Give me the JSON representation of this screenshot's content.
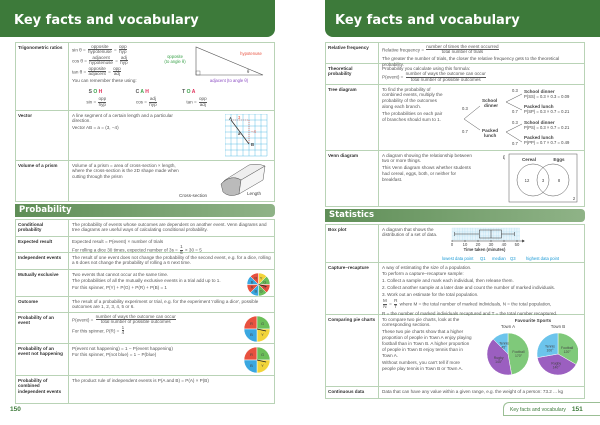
{
  "left": {
    "title": "Key facts and vocabulary",
    "page": "150",
    "rows1": [
      {
        "key": "trig",
        "label": "Trigonometric ratios",
        "lines": [
          [
            "sin θ = ",
            {
              "n": "opposite",
              "d": "hypotenuse"
            },
            " = ",
            {
              "n": "opp",
              "d": "hyp"
            }
          ],
          [
            "cos θ = ",
            {
              "n": "adjacent",
              "d": "hypotenuse"
            },
            " = ",
            {
              "n": "adj",
              "d": "hyp"
            }
          ],
          [
            "tan θ = ",
            {
              "n": "opposite",
              "d": "adjacent"
            },
            " = ",
            {
              "n": "opp",
              "d": "adj"
            }
          ],
          [
            "You can remember these using:"
          ]
        ],
        "mnemonic": [
          "S O H",
          "C A H",
          "T O A"
        ],
        "short": [
          [
            "sin = ",
            {
              "n": "opp",
              "d": "hyp"
            }
          ],
          [
            "cos = ",
            {
              "n": "adj",
              "d": "hyp"
            }
          ],
          [
            "tan = ",
            {
              "n": "opp",
              "d": "adj"
            }
          ]
        ],
        "diagram": {
          "hyp": "hypotenuse",
          "opp": "opposite (to angle θ)",
          "adj": "adjacent (to angle θ)",
          "angle": "θ"
        }
      },
      {
        "key": "vector",
        "label": "Vector",
        "lines": [
          [
            "A line segment of a certain length and a particular direction."
          ],
          [
            "Vector AB = a = (3, −4)"
          ]
        ],
        "diagram": {
          "a": "A",
          "b": "B",
          "v": "a",
          "dx": "3",
          "dy": "−4"
        }
      },
      {
        "key": "prism",
        "label": "Volume of a prism",
        "lines": [
          [
            "Volume of a prism = area of cross-section × length, where the cross-section is the 2D shape made when cutting through the prism"
          ]
        ],
        "diagram": {
          "cs": "Cross-section",
          "len": "Length"
        }
      }
    ],
    "section": "Probability",
    "rows2": [
      {
        "key": "cond",
        "label": "Conditional probability",
        "lines": [
          [
            "The probability of events whose outcomes are dependent on another event. Venn diagrams and tree diagrams are useful ways of calculating conditional probability."
          ]
        ]
      },
      {
        "key": "exp",
        "label": "Expected result",
        "lines": [
          [
            "Expected result = P(event) × number of trials"
          ],
          [
            "For rolling a dice 30 times, expected number of 3s = ",
            {
              "n": "1",
              "d": "6"
            },
            " × 30 = 5"
          ]
        ]
      },
      {
        "key": "ind",
        "label": "Independent events",
        "lines": [
          [
            "The result of one event does not change the probability of the second event, e.g. for a dice, rolling a 6 does not change the probability of rolling a 6 next time."
          ]
        ]
      },
      {
        "key": "mut",
        "label": "Mutually exclusive",
        "lines": [
          [
            "Two events that cannot occur at the same time."
          ],
          [
            "The probabilities of all the mutually exclusive events in a trial add up to 1."
          ],
          [
            "For this spinner, P(Y) + P(G) + P(R) + P(B) = 1"
          ]
        ],
        "spinner": [
          "Y",
          "G",
          "R",
          "G",
          "B",
          "R",
          "B",
          "R"
        ]
      },
      {
        "key": "out",
        "label": "Outcome",
        "lines": [
          [
            "The result of a probability experiment or trial, e.g. for the experiment 'rolling a dice', possible outcomes are 1, 2, 3, 4, 5 or 6."
          ]
        ]
      },
      {
        "key": "event",
        "label": "Probability of an event",
        "lines": [
          [
            "P(event) = ",
            {
              "n": "number of ways the outcome can occur",
              "d": "total number of possible outcomes"
            }
          ],
          [
            "For this spinner, P(R) = ",
            {
              "n": "1",
              "d": "4"
            }
          ]
        ],
        "spinner": [
          "R",
          "G",
          "Y",
          "B"
        ]
      },
      {
        "key": "not",
        "label": "Probability of an event not happening",
        "lines": [
          [
            "P(event not happening) = 1 − P(event happening)"
          ],
          [
            "For this spinner, P(not blue) = 1 − P(blue)"
          ]
        ],
        "spinner": [
          "R",
          "G",
          "Y",
          "B"
        ]
      },
      {
        "key": "comb",
        "label": "Probability of combined independent events",
        "lines": [
          [
            "The product rule of independent events is P(A and B) = P(A) × P(B)"
          ]
        ]
      }
    ]
  },
  "right": {
    "title": "Key facts and vocabulary",
    "footer_label": "Key facts and vocabulary",
    "page": "151",
    "rows1": [
      {
        "key": "rel",
        "label": "Relative frequency",
        "lines": [
          [
            "Relative frequency = ",
            {
              "n": "number of times the event occurred",
              "d": "total number of trials"
            }
          ],
          [
            "The greater the number of trials, the closer the relative frequency gets to the theoretical probability."
          ]
        ]
      },
      {
        "key": "theo",
        "label": "Theoretical probability",
        "lines": [
          [
            "Probability you calculate using this formula:"
          ],
          [
            "P(event) = ",
            {
              "n": "number of ways the outcome can occur",
              "d": "total number of possible outcomes"
            }
          ]
        ]
      },
      {
        "key": "tree",
        "label": "Tree diagram",
        "lines": [
          [
            "To find the probability of combined events, multiply the probability of the outcomes along each branch."
          ],
          [
            "The probabilities on each pair of branches should sum to 1."
          ]
        ],
        "diagram": {
          "first": [
            "School dinner",
            "Packed lunch"
          ],
          "p": [
            "0.3",
            "0.7"
          ],
          "outcomes": [
            [
              "School dinner",
              "P(SS) = 0.3 × 0.3 = 0.09"
            ],
            [
              "Packed lunch",
              "P(SP) = 0.3 × 0.7 = 0.21"
            ],
            [
              "School dinner",
              "P(PS) = 0.3 × 0.7 = 0.21"
            ],
            [
              "Packed lunch",
              "P(PP) = 0.7 × 0.7 = 0.49"
            ]
          ]
        }
      },
      {
        "key": "venn",
        "label": "Venn diagram",
        "lines": [
          [
            "A diagram showing the relationship between two or more things."
          ],
          [
            "This Venn diagram shows whether students had cereal, eggs, both, or neither for breakfast."
          ]
        ],
        "diagram": {
          "xi": "ξ",
          "a": "Cereal",
          "b": "Eggs",
          "onlyA": "12",
          "both": "3",
          "onlyB": "8",
          "neither": "2"
        }
      }
    ],
    "section": "Statistics",
    "rows2": [
      {
        "key": "box",
        "label": "Box plot",
        "lines": [
          [
            "A diagram that shows the distribution of a set of data."
          ]
        ],
        "diagram": {
          "ticks": [
            "0",
            "10",
            "20",
            "30",
            "40",
            "50"
          ],
          "axis": "Time taken (minutes)",
          "min": 2,
          "q1": 21,
          "median": 30,
          "q3": 38,
          "max": 48,
          "labels": [
            "lowest data point",
            "Q1",
            "median",
            "Q3",
            "highest data point"
          ]
        }
      },
      {
        "key": "cap",
        "label": "Capture–recapture",
        "lines": [
          [
            "A way of estimating the size of a population."
          ],
          [
            "To perform a capture–recapture sample:"
          ],
          [
            "1. Collect a sample and mark each individual, then release them."
          ],
          [
            "2. Collect another sample at a later date and count the number of marked individuals."
          ],
          [
            "3. Work out an estimate for the total population."
          ],
          [
            {
              "n": "M",
              "d": "N"
            },
            " = ",
            {
              "n": "R",
              "d": "T"
            },
            " where M = the total number of marked individuals, N = the total population,"
          ],
          [
            "R = the number of marked individuals recaptured and T = the total number recaptured."
          ]
        ]
      },
      {
        "key": "pie",
        "label": "Comparing pie charts",
        "lines": [
          [
            "To compare two pie charts, look at the corresponding sections."
          ],
          [
            "These two pie charts show that a higher proportion of people in Town A enjoy playing football than in Town B. A higher proportion of people in Town B enjoy tennis than in Town A."
          ],
          [
            "Without numbers, you can't tell if more people play tennis in Town B or Town A."
          ]
        ],
        "diagram": {
          "title": "Favourite Sports",
          "pies": [
            {
              "name": "Town A",
              "slices": [
                {
                  "label": "Football",
                  "deg": 170
                },
                {
                  "label": "Rugby",
                  "deg": 145
                },
                {
                  "label": "Tennis",
                  "deg": 45
                }
              ]
            },
            {
              "name": "Town B",
              "slices": [
                {
                  "label": "Football",
                  "deg": 120
                },
                {
                  "label": "Rugby",
                  "deg": 140
                },
                {
                  "label": "Tennis",
                  "deg": 100
                }
              ]
            }
          ]
        }
      },
      {
        "key": "cont",
        "label": "Continuous data",
        "lines": [
          [
            "Data that can have any value within a given range, e.g. the weight of a person: 73.2 ... kg"
          ]
        ]
      }
    ]
  },
  "colors": {
    "brand": "#3d7a3a",
    "R": "#e8513f",
    "G": "#6cbf5a",
    "B": "#3aa7e0",
    "Y": "#f2d43a",
    "football": "#7fc97a",
    "rugby": "#9b5fc0",
    "tennis": "#6cc4ec"
  }
}
